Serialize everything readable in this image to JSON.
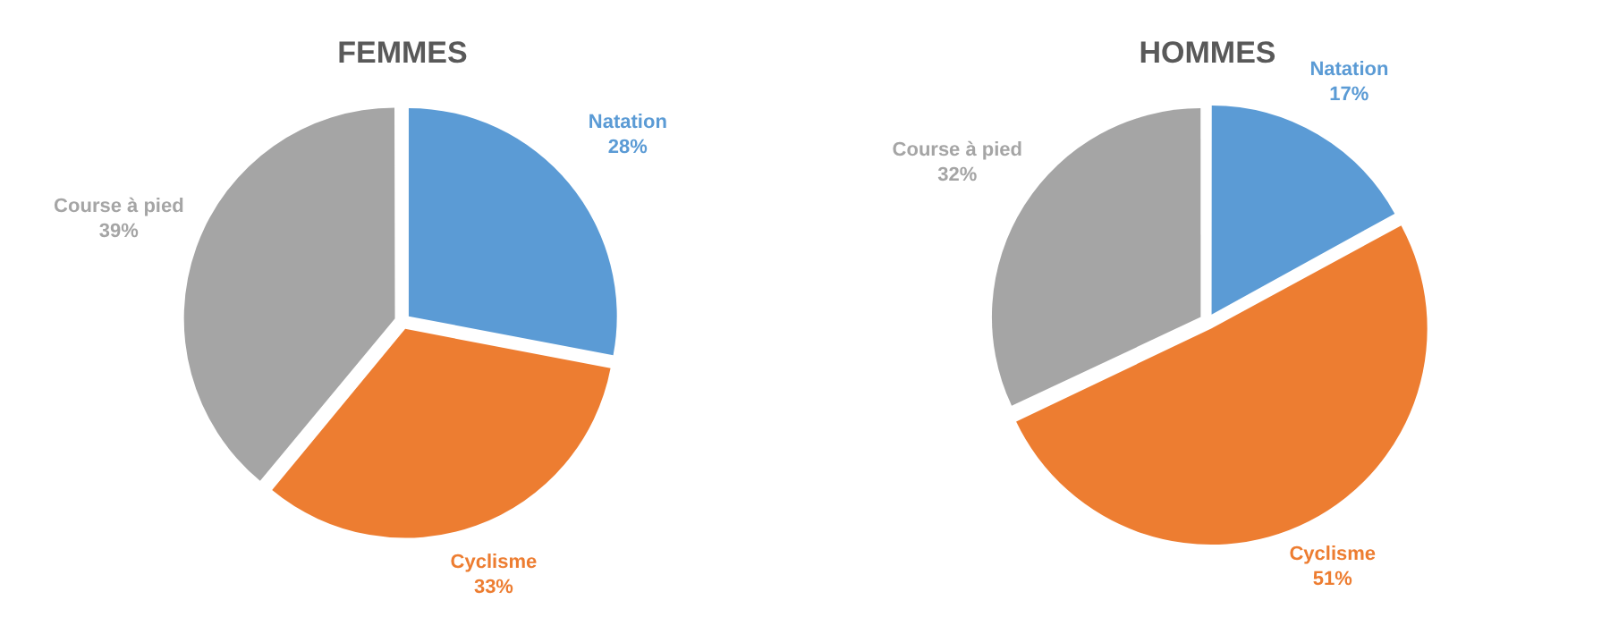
{
  "chart_data": [
    {
      "type": "pie",
      "title": "FEMMES",
      "categories": [
        "Natation",
        "Cyclisme",
        "Course à pied"
      ],
      "values": [
        28,
        33,
        39
      ],
      "colors": [
        "#5b9bd5",
        "#ed7d31",
        "#a5a5a5"
      ],
      "value_labels": [
        "28%",
        "33%",
        "39%"
      ],
      "legend": false
    },
    {
      "type": "pie",
      "title": "HOMMES",
      "categories": [
        "Natation",
        "Cyclisme",
        "Course à pied"
      ],
      "values": [
        17,
        51,
        32
      ],
      "colors": [
        "#5b9bd5",
        "#ed7d31",
        "#a5a5a5"
      ],
      "value_labels": [
        "17%",
        "51%",
        "32%"
      ],
      "legend": false
    }
  ]
}
